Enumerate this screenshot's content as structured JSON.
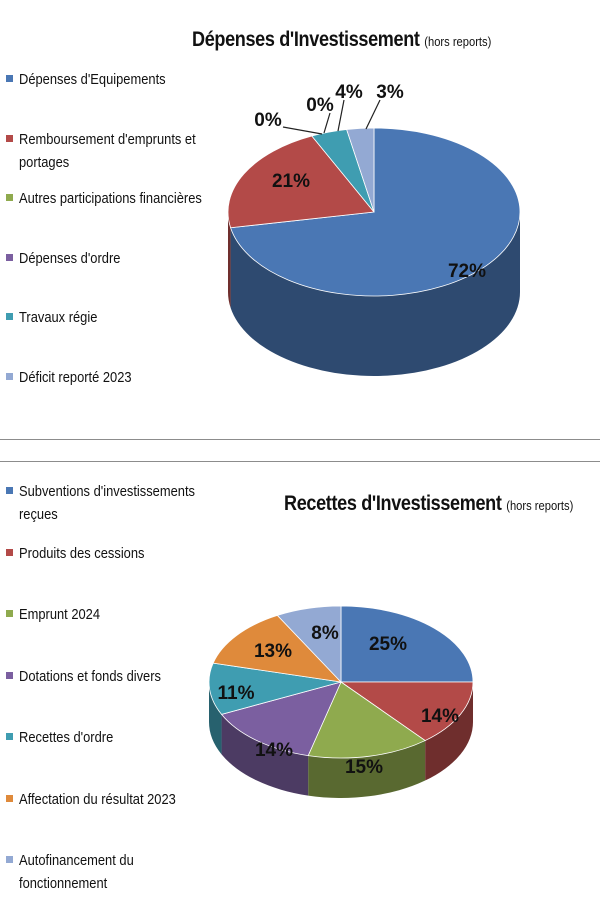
{
  "chart_data": [
    {
      "type": "pie",
      "title": "Dépenses d'Investissement",
      "subtitle": "(hors reports)",
      "legend_position": "left",
      "categories": [
        "Dépenses d'Equipements",
        "Remboursement d'emprunts et portages",
        "Autres participations financières",
        "Dépenses d'ordre",
        "Travaux régie",
        "Déficit reporté 2023"
      ],
      "values": [
        72,
        21,
        0,
        0,
        4,
        3
      ],
      "labels": [
        "72%",
        "21%",
        "0%",
        "0%",
        "4%",
        "3%"
      ],
      "colors": [
        "#4a77b4",
        "#b34a48",
        "#8faa4e",
        "#7b5fa0",
        "#3f9db1",
        "#93a9d3"
      ]
    },
    {
      "type": "pie",
      "title": "Recettes d'Investissement",
      "subtitle": "(hors reports)",
      "legend_position": "left",
      "categories": [
        "Subventions d'investissements reçues",
        "Produits des cessions",
        "Emprunt 2024",
        "Dotations et fonds divers",
        "Recettes d'ordre",
        "Affectation du résultat 2023",
        "Autofinancement du fonctionnement"
      ],
      "values": [
        25,
        14,
        15,
        14,
        11,
        13,
        8
      ],
      "labels": [
        "25%",
        "14%",
        "15%",
        "14%",
        "11%",
        "13%",
        "8%"
      ],
      "colors": [
        "#4a77b4",
        "#b34a48",
        "#8faa4e",
        "#7b5fa0",
        "#3f9db1",
        "#df8a3b",
        "#93a9d3"
      ]
    }
  ]
}
